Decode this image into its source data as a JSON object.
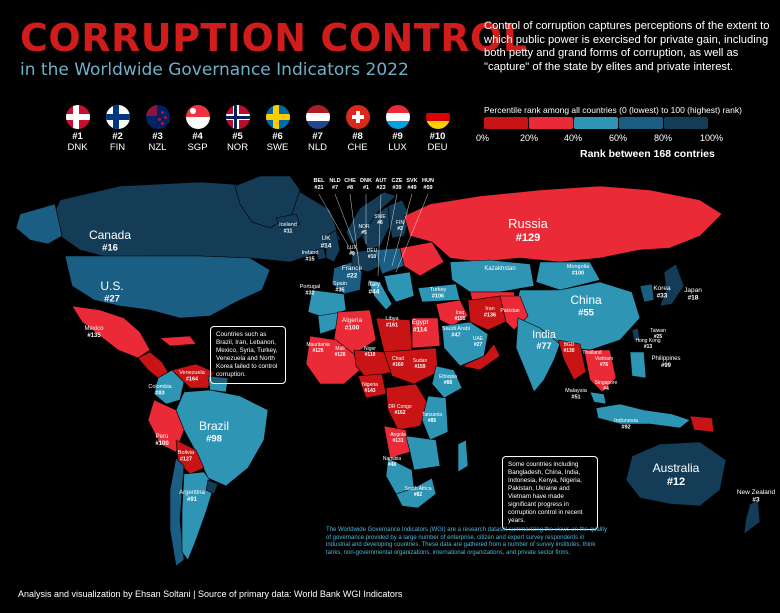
{
  "title": "CORRUPTION CONTROL",
  "subtitle": "in the Worldwide Governance Indicators 2022",
  "description": "Control of corruption captures perceptions of the extent to which public power is exercised for private gain, including both petty and grand forms of corruption, as well as \"capture\" of the state by elites and private interest.",
  "colors": {
    "title": "#d11c1c",
    "subtitle": "#6fb0c9",
    "bin_0_20": "#c81414",
    "bin_20_40": "#ea2a36",
    "bin_40_60": "#2f95b5",
    "bin_60_80": "#1a5f83",
    "bin_80_100": "#143c57",
    "ocean": "#000000"
  },
  "top10": [
    {
      "rank": "#1",
      "code": "DNK",
      "flag": "denmark-flag"
    },
    {
      "rank": "#2",
      "code": "FIN",
      "flag": "finland-flag"
    },
    {
      "rank": "#3",
      "code": "NZL",
      "flag": "new-zealand-flag"
    },
    {
      "rank": "#4",
      "code": "SGP",
      "flag": "singapore-flag"
    },
    {
      "rank": "#5",
      "code": "NOR",
      "flag": "norway-flag"
    },
    {
      "rank": "#6",
      "code": "SWE",
      "flag": "sweden-flag"
    },
    {
      "rank": "#7",
      "code": "NLD",
      "flag": "netherlands-flag"
    },
    {
      "rank": "#8",
      "code": "CHE",
      "flag": "switzerland-flag"
    },
    {
      "rank": "#9",
      "code": "LUX",
      "flag": "luxembourg-flag"
    },
    {
      "rank": "#10",
      "code": "DEU",
      "flag": "germany-flag"
    }
  ],
  "legend": {
    "title": "Percentile rank among all countries (0 (lowest) to 100 (highest) rank)",
    "ticks": [
      "0%",
      "20%",
      "40%",
      "60%",
      "80%",
      "100%"
    ],
    "rank_note": "Rank between 168 contries"
  },
  "europe_callouts": [
    {
      "code": "BEL",
      "rank": "#21"
    },
    {
      "code": "NLD",
      "rank": "#7"
    },
    {
      "code": "CHE",
      "rank": "#8"
    },
    {
      "code": "DNK",
      "rank": "#1"
    },
    {
      "code": "AUT",
      "rank": "#23"
    },
    {
      "code": "CZE",
      "rank": "#39"
    },
    {
      "code": "SVK",
      "rank": "#49"
    },
    {
      "code": "HUN",
      "rank": "#59"
    }
  ],
  "countries": {
    "canada": {
      "name": "Canada",
      "rank": "#16"
    },
    "us": {
      "name": "U.S.",
      "rank": "#27"
    },
    "mexico": {
      "name": "Mexico",
      "rank": "#135"
    },
    "brazil": {
      "name": "Brazil",
      "rank": "#98"
    },
    "russia": {
      "name": "Russia",
      "rank": "#129"
    },
    "china": {
      "name": "China",
      "rank": "#55"
    },
    "india": {
      "name": "India",
      "rank": "#77"
    },
    "australia": {
      "name": "Australia",
      "rank": "#12"
    },
    "new_zealand": {
      "name": "New Zealand",
      "rank": "#3"
    },
    "japan": {
      "name": "Japan",
      "rank": "#18"
    },
    "korea": {
      "name": "Korea",
      "rank": "#33"
    },
    "kazakhstan": {
      "name": "Kazakhstan",
      "rank": ""
    },
    "mongolia": {
      "name": "Mongolia",
      "rank": "#100"
    },
    "iceland": {
      "name": "Iceland",
      "rank": "#11"
    },
    "uk": {
      "name": "UK",
      "rank": "#14"
    },
    "ireland": {
      "name": "Ireland",
      "rank": "#15"
    },
    "france": {
      "name": "France",
      "rank": "#22"
    },
    "portugal": {
      "name": "Portugal",
      "rank": "#32"
    },
    "spain": {
      "name": "Spain",
      "rank": "#35"
    },
    "italy": {
      "name": "Italy",
      "rank": "#44"
    },
    "sweden": {
      "name": "SWE",
      "rank": "#6"
    },
    "norway": {
      "name": "NOR",
      "rank": "#5"
    },
    "finland": {
      "name": "FIN",
      "rank": "#2"
    },
    "lux": {
      "name": "LUX",
      "rank": "#9"
    },
    "deu": {
      "name": "DEU",
      "rank": "#10"
    },
    "algeria": {
      "name": "Algeria",
      "rank": "#100"
    },
    "libya": {
      "name": "Libya",
      "rank": "#161"
    },
    "egypt": {
      "name": "Egypt",
      "rank": "#114"
    },
    "saudi": {
      "name": "Saudi Arabi",
      "rank": "#47"
    },
    "iran": {
      "name": "Iran",
      "rank": "#136"
    },
    "iraq": {
      "name": "Iraq",
      "rank": "#155"
    },
    "turkey": {
      "name": "Turkey",
      "rank": "#106"
    },
    "uae": {
      "name": "UAE",
      "rank": "#27"
    },
    "pakistan": {
      "name": "Pakistan",
      "rank": ""
    },
    "bangladesh": {
      "name": "BGD",
      "rank": "#130"
    },
    "taiwan": {
      "name": "Taiwan",
      "rank": "#25"
    },
    "hongkong": {
      "name": "Hong Kong",
      "rank": "#13"
    },
    "philippines": {
      "name": "Philippines",
      "rank": "#99"
    },
    "vietnam": {
      "name": "Vietnam",
      "rank": "#76"
    },
    "thailand": {
      "name": "Thailand",
      "rank": ""
    },
    "malaysia": {
      "name": "Malaysia",
      "rank": "#51"
    },
    "singapore": {
      "name": "Singapore",
      "rank": "#4"
    },
    "indonesia": {
      "name": "Indonesia",
      "rank": "#92"
    },
    "mauritania": {
      "name": "Mauritania",
      "rank": "#126"
    },
    "mali": {
      "name": "Mali",
      "rank": "#128"
    },
    "niger": {
      "name": "Niger",
      "rank": "#110"
    },
    "chad": {
      "name": "Chad",
      "rank": "#160"
    },
    "nigeria": {
      "name": "Nigeria",
      "rank": "#143"
    },
    "sudan": {
      "name": "Sudan",
      "rank": "#159"
    },
    "ethiopia": {
      "name": "Ethiopia",
      "rank": "#88"
    },
    "congo": {
      "name": "DR Congo",
      "rank": "#162"
    },
    "tanzania": {
      "name": "Tanzania",
      "rank": "#85"
    },
    "angola": {
      "name": "Angola",
      "rank": "#131"
    },
    "namibia": {
      "name": "Namibia",
      "rank": "#48"
    },
    "south_africa": {
      "name": "South Africa",
      "rank": "#82"
    },
    "colombia": {
      "name": "Colombia",
      "rank": "#83"
    },
    "venezuela": {
      "name": "Venezuela",
      "rank": "#164"
    },
    "peru": {
      "name": "Peru",
      "rank": "#100"
    },
    "bolivia": {
      "name": "Bolivia",
      "rank": "#127"
    },
    "argentina": {
      "name": "Argentina",
      "rank": "#91"
    }
  },
  "notes": {
    "red_note": "Countries such as Brazil, Iran, Lebanon, Mexico, Syria, Turkey, Venezuela and North Korea failed to control corruption.",
    "blue_note": "Some countries including Bangladesh, China, India, Indonesia, Kenya, Nigeria, Pakistan, Ukraine and Vietnam have made significant progress in corruption control in recent years."
  },
  "footer_paragraph": "The Worldwide Governance Indicators (WGI) are a research dataset summarizing the views on the quality of governance provided by a large number of enterprise, citizen and expert survey respondents in industrial and developing countries. These data are gathered from a number of survey institutes, think tanks, non-governmental organizations, international organizations, and private sector firms.",
  "credit": "Analysis and visualization by Ehsan Soltani | Source of primary data: World Bank WGI Indicators"
}
